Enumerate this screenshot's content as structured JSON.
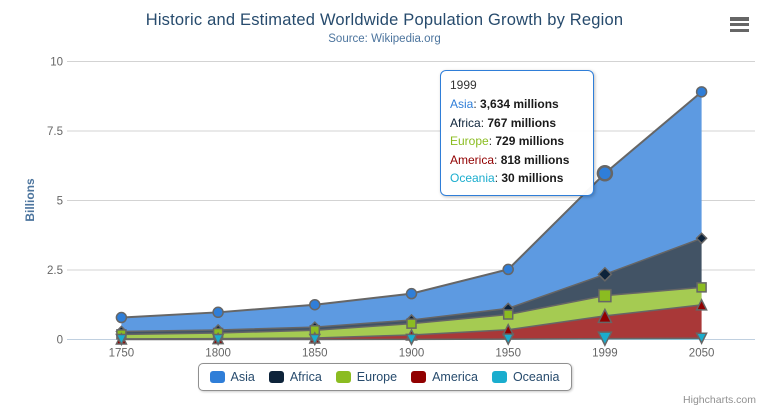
{
  "chart": {
    "title": "Historic and Estimated Worldwide Population Growth by Region",
    "subtitle": "Source: Wikipedia.org",
    "credits": "Highcharts.com",
    "context_menu_icon": "hamburger-icon"
  },
  "chart_data": {
    "type": "area",
    "stacking": "normal",
    "title": "Historic and Estimated Worldwide Population Growth by Region",
    "subtitle": "Source: Wikipedia.org",
    "categories": [
      "1750",
      "1800",
      "1850",
      "1900",
      "1950",
      "1999",
      "2050"
    ],
    "series": [
      {
        "name": "Asia",
        "color": "#2f7ed8",
        "marker": "circle",
        "values_millions": [
          502,
          635,
          809,
          947,
          1402,
          3634,
          5268
        ]
      },
      {
        "name": "Africa",
        "color": "#0d233a",
        "marker": "diamond",
        "values_millions": [
          106,
          107,
          111,
          133,
          221,
          767,
          1766
        ]
      },
      {
        "name": "Europe",
        "color": "#8bbc21",
        "marker": "square",
        "values_millions": [
          163,
          203,
          276,
          408,
          547,
          729,
          628
        ]
      },
      {
        "name": "America",
        "color": "#910000",
        "marker": "triangle",
        "values_millions": [
          18,
          31,
          54,
          156,
          339,
          818,
          1201
        ]
      },
      {
        "name": "Oceania",
        "color": "#1aadce",
        "marker": "triangle-down",
        "values_millions": [
          2,
          2,
          2,
          6,
          13,
          30,
          46
        ]
      }
    ],
    "xlabel": "",
    "ylabel": "Billions",
    "ylim": [
      0,
      10
    ],
    "yticks": [
      0,
      2.5,
      5,
      7.5,
      10
    ],
    "values_unit": "millions",
    "grid": true,
    "legend_position": "bottom",
    "hover_category_index": 5,
    "line_color": "#666666",
    "fill_opacity": 0.78,
    "grid_color": "#d3d3d3",
    "axis_line_color": "#c0d0e0",
    "axis_label_color": "#666666"
  },
  "tooltip": {
    "header": "1999",
    "rows": [
      {
        "name": "Asia",
        "color": "#2f7ed8",
        "value": "3,634 millions"
      },
      {
        "name": "Africa",
        "color": "#0d233a",
        "value": "767 millions"
      },
      {
        "name": "Europe",
        "color": "#8bbc21",
        "value": "729 millions"
      },
      {
        "name": "America",
        "color": "#910000",
        "value": "818 millions"
      },
      {
        "name": "Oceania",
        "color": "#1aadce",
        "value": "30 millions"
      }
    ]
  },
  "legend": {
    "items": [
      {
        "label": "Asia",
        "color": "#2f7ed8"
      },
      {
        "label": "Africa",
        "color": "#0d233a"
      },
      {
        "label": "Europe",
        "color": "#8bbc21"
      },
      {
        "label": "America",
        "color": "#910000"
      },
      {
        "label": "Oceania",
        "color": "#1aadce"
      }
    ]
  },
  "x_axis": {
    "labels": [
      "1750",
      "1800",
      "1850",
      "1900",
      "1950",
      "1999",
      "2050"
    ]
  },
  "y_axis": {
    "title": "Billions",
    "labels": [
      "0",
      "2.5",
      "5",
      "7.5",
      "10"
    ]
  }
}
